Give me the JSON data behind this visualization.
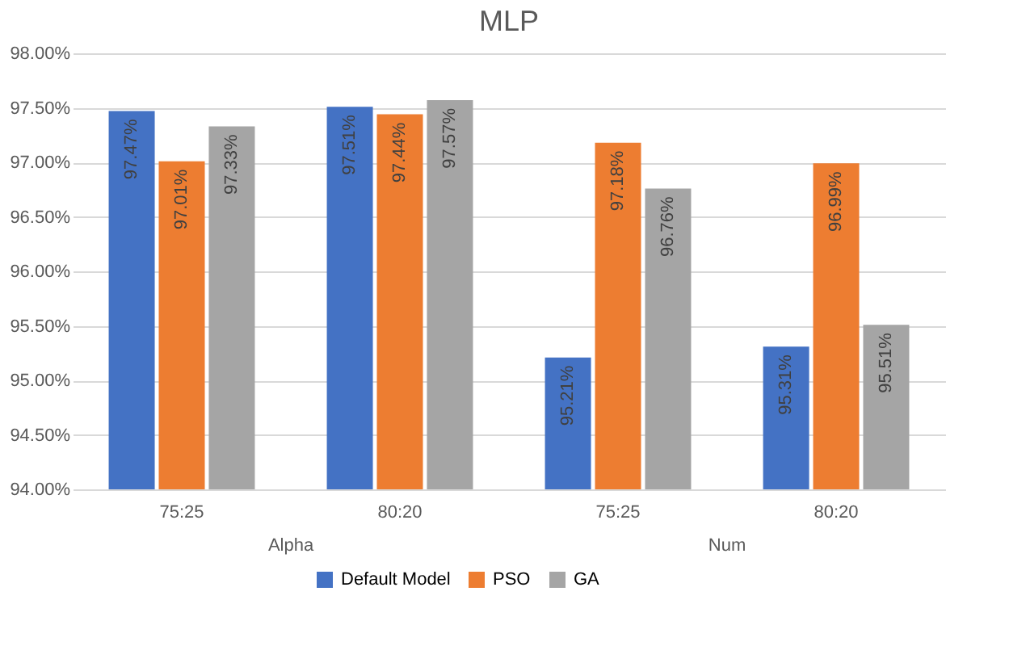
{
  "chart_data": {
    "type": "bar",
    "title": "MLP",
    "categories": [
      "75:25",
      "80:20",
      "75:25",
      "80:20"
    ],
    "series": [
      {
        "name": "Default Model",
        "color": "#4472c4",
        "values": [
          97.47,
          97.51,
          95.21,
          95.31
        ],
        "value_labels": [
          "97.47%",
          "97.51%",
          "95.21%",
          "95.31%"
        ]
      },
      {
        "name": "PSO",
        "color": "#ed7d31",
        "values": [
          97.01,
          97.44,
          97.18,
          96.99
        ],
        "value_labels": [
          "97.01%",
          "97.44%",
          "97.18%",
          "96.99%"
        ]
      },
      {
        "name": "GA",
        "color": "#a5a5a5",
        "values": [
          97.33,
          97.57,
          96.76,
          95.51
        ],
        "value_labels": [
          "97.33%",
          "97.57%",
          "96.76%",
          "95.51%"
        ]
      }
    ],
    "annotations": [
      "Alpha",
      "Num"
    ],
    "ylim": [
      94,
      98
    ],
    "yticks": [
      {
        "value": 94,
        "label": "94.00%"
      },
      {
        "value": 94.5,
        "label": "94.50%"
      },
      {
        "value": 95,
        "label": "95.00%"
      },
      {
        "value": 95.5,
        "label": "95.50%"
      },
      {
        "value": 96,
        "label": "96.00%"
      },
      {
        "value": 96.5,
        "label": "96.50%"
      },
      {
        "value": 97,
        "label": "97.00%"
      },
      {
        "value": 97.5,
        "label": "97.50%"
      },
      {
        "value": 98,
        "label": "98.00%"
      }
    ],
    "grid": "y",
    "legend": "bottom"
  }
}
